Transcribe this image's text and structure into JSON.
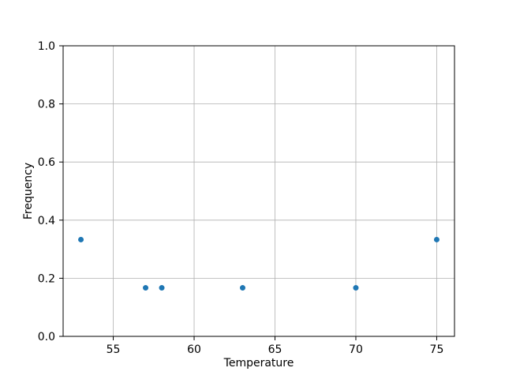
{
  "chart_data": {
    "type": "scatter",
    "title": "",
    "xlabel": "Temperature",
    "ylabel": "Frequency",
    "x": [
      53,
      57,
      58,
      63,
      70,
      75
    ],
    "y": [
      0.333,
      0.167,
      0.167,
      0.167,
      0.167,
      0.333
    ],
    "xlim": [
      51.9,
      76.1
    ],
    "ylim": [
      0.0,
      1.0
    ],
    "xticks": [
      55,
      60,
      65,
      70,
      75
    ],
    "xtick_labels": [
      "55",
      "60",
      "65",
      "70",
      "75"
    ],
    "yticks": [
      0.0,
      0.2,
      0.4,
      0.6,
      0.8,
      1.0
    ],
    "ytick_labels": [
      "0.0",
      "0.2",
      "0.4",
      "0.6",
      "0.8",
      "1.0"
    ],
    "grid": true,
    "legend": null,
    "marker_color": "#1f77b4",
    "grid_color": "#b0b0b0",
    "spine_color": "#000000",
    "background_color": "#ffffff"
  }
}
